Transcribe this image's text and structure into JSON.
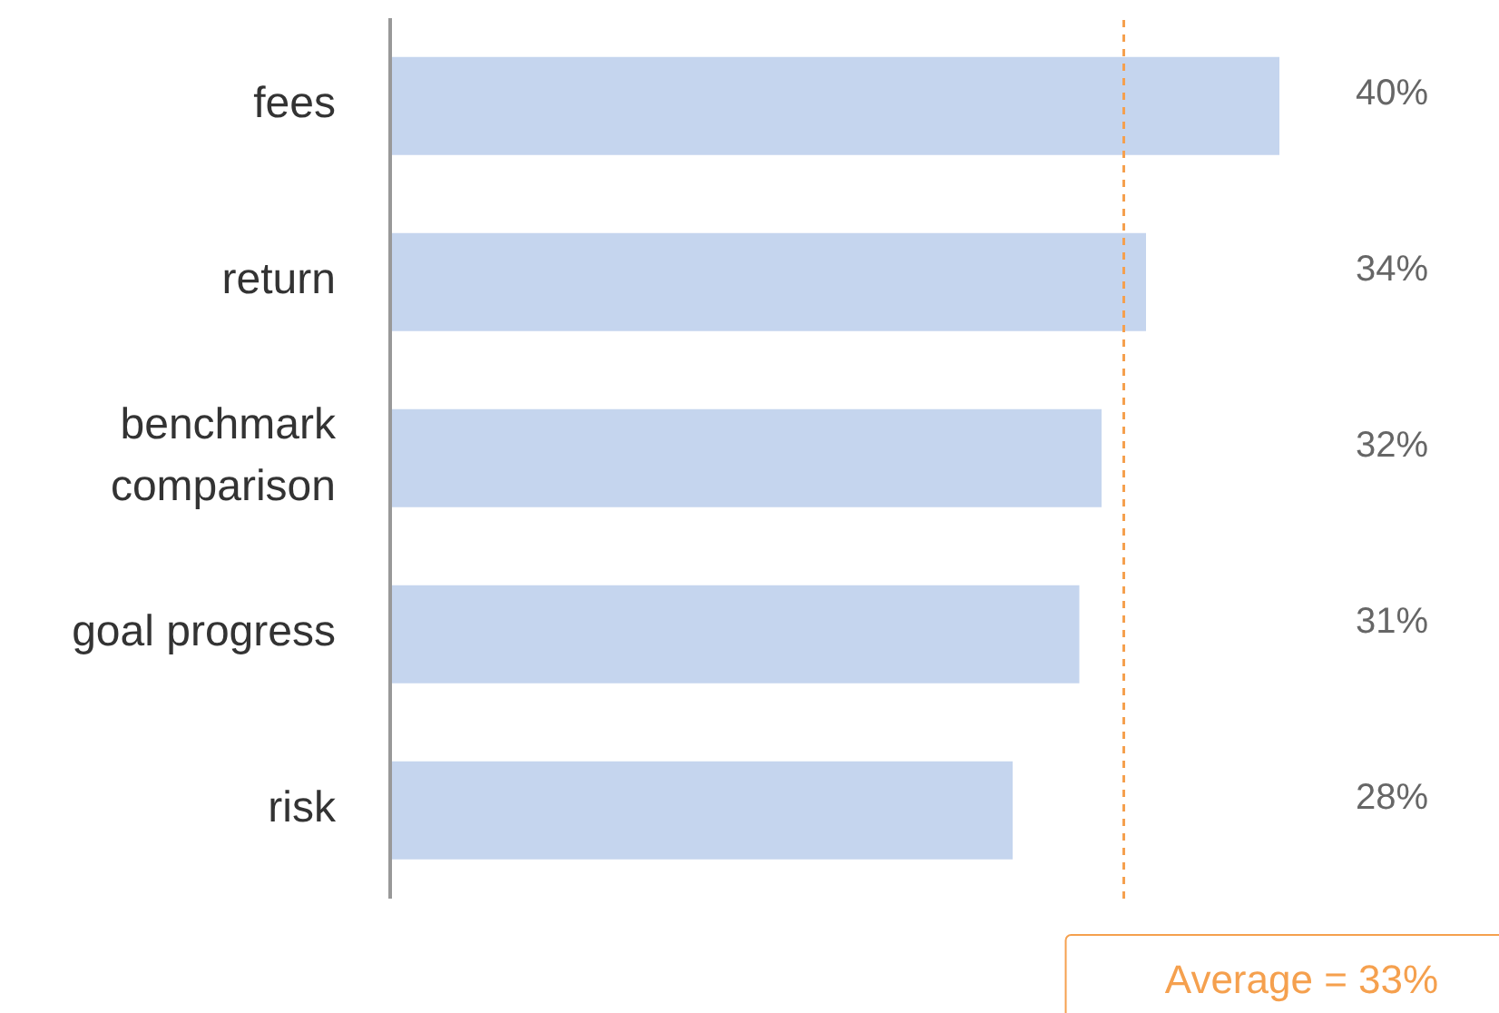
{
  "chart_data": {
    "type": "bar",
    "orientation": "horizontal",
    "categories": [
      "fees",
      "return",
      "benchmark comparison",
      "goal progress",
      "risk"
    ],
    "values": [
      40,
      34,
      32,
      31,
      28
    ],
    "color": "#c5d5ee",
    "value_labels": [
      "40%",
      "34%",
      "32%",
      "31%",
      "28%"
    ],
    "tick_labels": "y",
    "grid": false,
    "ref_lines": [
      {
        "axis": "x",
        "value": 33,
        "label": "Average = 33%",
        "color": "#f5a04e",
        "line_style": "dashed"
      }
    ]
  }
}
